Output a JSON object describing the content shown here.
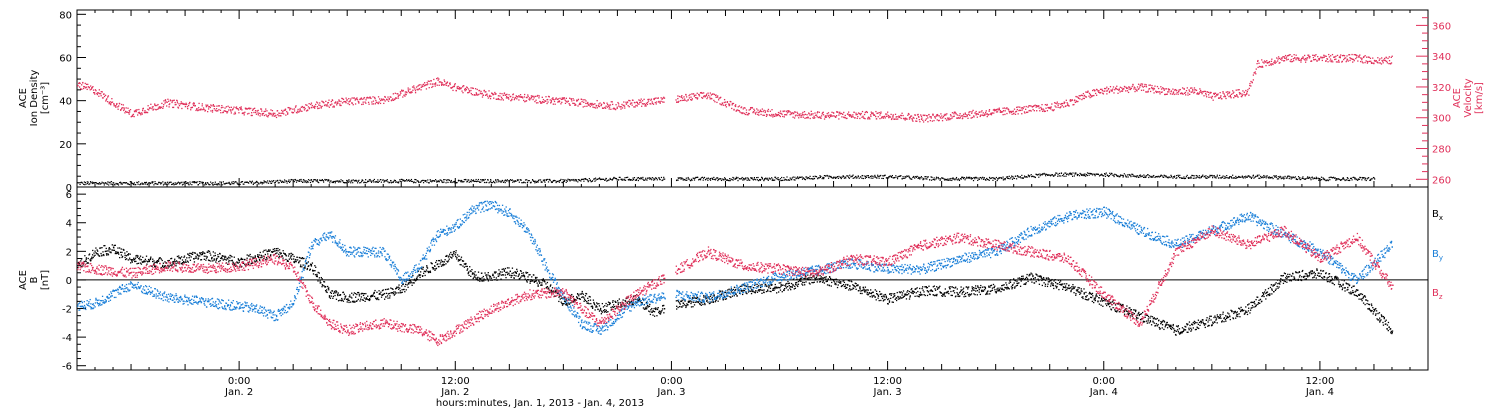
{
  "chart_data": [
    {
      "type": "scatter",
      "panel": "top",
      "ylabel": [
        "ACE",
        "Ion Density",
        "[cm⁻³]"
      ],
      "ylim": [
        0,
        82
      ],
      "yticks": [
        0,
        20,
        40,
        60,
        80
      ],
      "y2label": [
        "ACE",
        "Velocity",
        "[km/s]"
      ],
      "y2lim": [
        255,
        370
      ],
      "y2ticks": [
        260,
        280,
        300,
        320,
        340,
        360
      ],
      "x_hours_range": [
        -9,
        66
      ],
      "series": [
        {
          "axis": "left",
          "color": "#000000",
          "x": [
            -9,
            -6,
            -3,
            0,
            3,
            6,
            9,
            12,
            15,
            18,
            21,
            24,
            27,
            30,
            33,
            36,
            39,
            42,
            45,
            48,
            51,
            54,
            57,
            60,
            63
          ],
          "y": [
            2,
            2,
            2,
            2,
            3,
            3,
            3,
            3,
            3,
            3,
            4,
            4,
            4,
            4,
            5,
            5,
            4,
            4,
            6,
            6,
            5,
            5,
            5,
            4,
            4
          ]
        },
        {
          "axis": "right",
          "color": "#e0305a",
          "x": [
            -9,
            -8,
            -7,
            -6,
            -4,
            -2,
            0,
            2,
            4,
            6,
            8,
            10,
            11,
            12,
            14,
            16,
            18,
            20,
            21,
            22,
            24,
            26,
            28,
            30,
            32,
            34,
            36,
            38,
            40,
            42,
            44,
            45,
            46,
            47,
            48,
            50,
            52,
            53,
            54,
            56,
            56.5,
            58,
            60,
            62,
            63.5,
            64
          ],
          "y": [
            322,
            318,
            310,
            303,
            310,
            307,
            305,
            303,
            308,
            311,
            312,
            320,
            324,
            320,
            315,
            313,
            311,
            309,
            308,
            310,
            312,
            315,
            305,
            303,
            302,
            302,
            302,
            300,
            302,
            304,
            306,
            307,
            310,
            315,
            318,
            320,
            317,
            318,
            314,
            317,
            335,
            339,
            339,
            339,
            337,
            338
          ]
        }
      ]
    },
    {
      "type": "scatter",
      "panel": "bottom",
      "ylabel": [
        "ACE",
        "B",
        "[nT]"
      ],
      "ylim": [
        -6.3,
        6.5
      ],
      "yticks": [
        -6,
        -4,
        -2,
        0,
        2,
        4,
        6
      ],
      "x_hours_range": [
        -9,
        66
      ],
      "xticks": [
        {
          "hour": 0,
          "line1": "0:00",
          "line2": "Jan. 2"
        },
        {
          "hour": 12,
          "line1": "12:00",
          "line2": "Jan. 2"
        },
        {
          "hour": 24,
          "line1": "0:00",
          "line2": "Jan. 3"
        },
        {
          "hour": 36,
          "line1": "12:00",
          "line2": "Jan. 3"
        },
        {
          "hour": 48,
          "line1": "0:00",
          "line2": "Jan. 4"
        },
        {
          "hour": 60,
          "line1": "12:00",
          "line2": "Jan. 4"
        }
      ],
      "xlabel": "hours:minutes, Jan.  1, 2013 - Jan.  4, 2013",
      "series": [
        {
          "name": "B",
          "subscript": "x",
          "color": "#000000",
          "x": [
            -9,
            -8,
            -7,
            -6,
            -4,
            -2,
            0,
            2,
            4,
            5,
            6,
            8,
            9,
            10,
            12,
            13,
            14,
            15,
            16,
            17,
            18,
            19,
            20,
            22,
            23,
            24,
            26,
            28,
            30,
            32,
            34,
            36,
            38,
            40,
            42,
            44,
            46,
            48,
            50,
            52,
            54,
            56,
            58,
            60,
            62,
            64
          ],
          "y": [
            1.0,
            2.0,
            2.2,
            1.5,
            1.2,
            1.8,
            1.3,
            2.0,
            1.0,
            -1.0,
            -1.2,
            -1.0,
            -0.6,
            0.5,
            1.8,
            0.3,
            0.3,
            0.6,
            0.2,
            -0.3,
            -1.5,
            -1.0,
            -2.0,
            -1.3,
            -2.2,
            -1.8,
            -1.3,
            -0.6,
            -0.5,
            0.2,
            -0.4,
            -1.3,
            -0.7,
            -0.8,
            -0.6,
            0.2,
            -0.5,
            -1.5,
            -2.5,
            -3.5,
            -2.8,
            -2.0,
            0.2,
            0.5,
            -0.8,
            -3.5
          ]
        },
        {
          "name": "B",
          "subscript": "y",
          "color": "#1a7fd8",
          "x": [
            -9,
            -8,
            -6,
            -4,
            -2,
            0,
            1,
            2,
            3,
            4,
            5,
            6,
            8,
            9,
            10,
            11,
            12,
            13,
            14,
            15,
            16,
            17,
            18,
            19,
            20,
            22,
            24,
            26,
            28,
            30,
            32,
            34,
            36,
            38,
            40,
            42,
            44,
            46,
            48,
            50,
            52,
            54,
            56,
            58,
            60,
            62,
            64
          ],
          "y": [
            -1.8,
            -1.6,
            -0.3,
            -1.2,
            -1.5,
            -1.8,
            -2.0,
            -2.5,
            -1.5,
            2.5,
            3.2,
            2.0,
            2.0,
            0.0,
            1.0,
            3.2,
            3.8,
            5.0,
            5.3,
            4.7,
            3.5,
            1.0,
            -1.2,
            -3.0,
            -3.5,
            -1.5,
            -1.0,
            -1.2,
            -0.5,
            0.3,
            0.7,
            1.2,
            0.8,
            0.8,
            1.5,
            2.0,
            3.5,
            4.5,
            4.8,
            3.5,
            2.5,
            3.5,
            4.5,
            3.2,
            2.0,
            0.0,
            2.5
          ]
        },
        {
          "name": "B",
          "subscript": "z",
          "color": "#e0305a",
          "x": [
            -9,
            -8,
            -6,
            -4,
            -2,
            0,
            2,
            3,
            4,
            5,
            6,
            7,
            8,
            10,
            11,
            12,
            14,
            16,
            18,
            19,
            20,
            22,
            24,
            26,
            28,
            30,
            32,
            34,
            36,
            38,
            40,
            42,
            44,
            46,
            48,
            50,
            52,
            54,
            56,
            58,
            60,
            62,
            64
          ],
          "y": [
            1.0,
            0.8,
            0.5,
            1.0,
            0.8,
            1.0,
            1.5,
            0.8,
            -1.5,
            -3.0,
            -3.5,
            -3.2,
            -3.0,
            -3.5,
            -4.2,
            -3.5,
            -2.0,
            -1.0,
            -0.8,
            -2.0,
            -3.0,
            -1.0,
            0.5,
            2.0,
            1.0,
            0.8,
            0.5,
            1.5,
            1.3,
            2.5,
            3.0,
            2.5,
            2.0,
            1.5,
            -1.0,
            -3.0,
            2.0,
            3.5,
            2.5,
            3.5,
            1.5,
            3.0,
            -0.5
          ]
        }
      ]
    }
  ]
}
